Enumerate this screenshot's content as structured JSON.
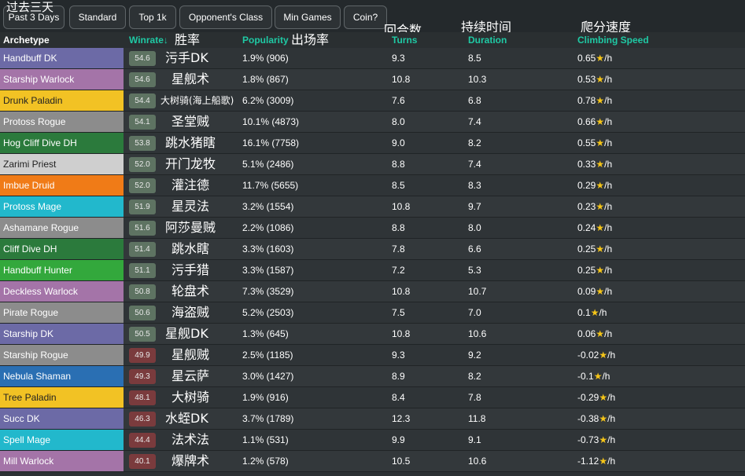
{
  "overlay_title": "过去三天",
  "filters": [
    {
      "label": "Past 3 Days"
    },
    {
      "label": "Standard"
    },
    {
      "label": "Top 1k"
    },
    {
      "label": "Opponent's Class"
    },
    {
      "label": "Min Games"
    },
    {
      "label": "Coin?"
    }
  ],
  "headers": {
    "archetype": "Archetype",
    "winrate": "Winrate↓",
    "winrate_cn": "胜率",
    "popularity": "Popularity",
    "popularity_cn": "出场率",
    "turns": "Turns",
    "turns_cn": "回合数",
    "duration": "Duration",
    "duration_cn": "持续时间",
    "climbing": "Climbing Speed",
    "climbing_cn": "爬分速度"
  },
  "colors": {
    "accent": "#1fc9a4",
    "star": "#f5c518",
    "badge_good": "#5e7362",
    "badge_bad": "#7a3b3d"
  },
  "rows": [
    {
      "archetype": "Handbuff DK",
      "color": "#6c6aa6",
      "winrate": "54.6",
      "good": true,
      "cn": "污手DK",
      "popularity": "1.9% (906)",
      "turns": "9.3",
      "duration": "8.5",
      "climb": "0.65",
      "unit": "/h"
    },
    {
      "archetype": "Starship Warlock",
      "color": "#a474a8",
      "winrate": "54.6",
      "good": true,
      "cn": "星舰术",
      "popularity": "1.8% (867)",
      "turns": "10.8",
      "duration": "10.3",
      "climb": "0.53",
      "unit": "/h"
    },
    {
      "archetype": "Drunk Paladin",
      "color": "#f2c224",
      "winrate": "54.4",
      "good": true,
      "cn": "大树骑(海上船歌)",
      "popularity": "6.2% (3009)",
      "turns": "7.6",
      "duration": "6.8",
      "climb": "0.78",
      "unit": "/h"
    },
    {
      "archetype": "Protoss Rogue",
      "color": "#8c8c8c",
      "winrate": "54.1",
      "good": true,
      "cn": "圣堂贼",
      "popularity": "10.1% (4873)",
      "turns": "8.0",
      "duration": "7.4",
      "climb": "0.66",
      "unit": "/h"
    },
    {
      "archetype": "Hog Cliff Dive DH",
      "color": "#2b7a3c",
      "winrate": "53.8",
      "good": true,
      "cn": "跳水猪瞎",
      "popularity": "16.1% (7758)",
      "turns": "9.0",
      "duration": "8.2",
      "climb": "0.55",
      "unit": "/h"
    },
    {
      "archetype": "Zarimi Priest",
      "color": "#cfcfcf",
      "winrate": "52.0",
      "good": true,
      "cn": "开门龙牧",
      "popularity": "5.1% (2486)",
      "turns": "8.8",
      "duration": "7.4",
      "climb": "0.33",
      "unit": "/h"
    },
    {
      "archetype": "Imbue Druid",
      "color": "#f07b17",
      "winrate": "52.0",
      "good": true,
      "cn": "灌注德",
      "popularity": "11.7% (5655)",
      "turns": "8.5",
      "duration": "8.3",
      "climb": "0.29",
      "unit": "/h"
    },
    {
      "archetype": "Protoss Mage",
      "color": "#22b8cc",
      "winrate": "51.9",
      "good": true,
      "cn": "星灵法",
      "popularity": "3.2% (1554)",
      "turns": "10.8",
      "duration": "9.7",
      "climb": "0.23",
      "unit": "/h"
    },
    {
      "archetype": "Ashamane Rogue",
      "color": "#8c8c8c",
      "winrate": "51.6",
      "good": true,
      "cn": "阿莎曼贼",
      "popularity": "2.2% (1086)",
      "turns": "8.8",
      "duration": "8.0",
      "climb": "0.24",
      "unit": "/h"
    },
    {
      "archetype": "Cliff Dive DH",
      "color": "#2b7a3c",
      "winrate": "51.4",
      "good": true,
      "cn": "跳水瞎",
      "popularity": "3.3% (1603)",
      "turns": "7.8",
      "duration": "6.6",
      "climb": "0.25",
      "unit": "/h"
    },
    {
      "archetype": "Handbuff Hunter",
      "color": "#33a83c",
      "winrate": "51.1",
      "good": true,
      "cn": "污手猎",
      "popularity": "3.3% (1587)",
      "turns": "7.2",
      "duration": "5.3",
      "climb": "0.25",
      "unit": "/h"
    },
    {
      "archetype": "Deckless Warlock",
      "color": "#a474a8",
      "winrate": "50.8",
      "good": true,
      "cn": "轮盘术",
      "popularity": "7.3% (3529)",
      "turns": "10.8",
      "duration": "10.7",
      "climb": "0.09",
      "unit": "/h"
    },
    {
      "archetype": "Pirate Rogue",
      "color": "#8c8c8c",
      "winrate": "50.6",
      "good": true,
      "cn": "海盗贼",
      "popularity": "5.2% (2503)",
      "turns": "7.5",
      "duration": "7.0",
      "climb": "0.1",
      "unit": "/h"
    },
    {
      "archetype": "Starship DK",
      "color": "#6c6aa6",
      "winrate": "50.5",
      "good": true,
      "cn": "星舰DK",
      "popularity": "1.3% (645)",
      "turns": "10.8",
      "duration": "10.6",
      "climb": "0.06",
      "unit": "/h"
    },
    {
      "archetype": "Starship Rogue",
      "color": "#8c8c8c",
      "winrate": "49.9",
      "good": false,
      "cn": "星舰贼",
      "popularity": "2.5% (1185)",
      "turns": "9.3",
      "duration": "9.2",
      "climb": "-0.02",
      "unit": "/h"
    },
    {
      "archetype": "Nebula Shaman",
      "color": "#2a6fb3",
      "winrate": "49.3",
      "good": false,
      "cn": "星云萨",
      "popularity": "3.0% (1427)",
      "turns": "8.9",
      "duration": "8.2",
      "climb": "-0.1",
      "unit": "/h"
    },
    {
      "archetype": "Tree Paladin",
      "color": "#f2c224",
      "winrate": "48.1",
      "good": false,
      "cn": "大树骑",
      "popularity": "1.9% (916)",
      "turns": "8.4",
      "duration": "7.8",
      "climb": "-0.29",
      "unit": "/h"
    },
    {
      "archetype": "Succ DK",
      "color": "#6c6aa6",
      "winrate": "46.3",
      "good": false,
      "cn": "水蛭DK",
      "popularity": "3.7% (1789)",
      "turns": "12.3",
      "duration": "11.8",
      "climb": "-0.38",
      "unit": "/h"
    },
    {
      "archetype": "Spell Mage",
      "color": "#22b8cc",
      "winrate": "44.4",
      "good": false,
      "cn": "法术法",
      "popularity": "1.1% (531)",
      "turns": "9.9",
      "duration": "9.1",
      "climb": "-0.73",
      "unit": "/h"
    },
    {
      "archetype": "Mill Warlock",
      "color": "#a474a8",
      "winrate": "40.1",
      "good": false,
      "cn": "爆牌术",
      "popularity": "1.2% (578)",
      "turns": "10.5",
      "duration": "10.6",
      "climb": "-1.12",
      "unit": "/h"
    }
  ]
}
